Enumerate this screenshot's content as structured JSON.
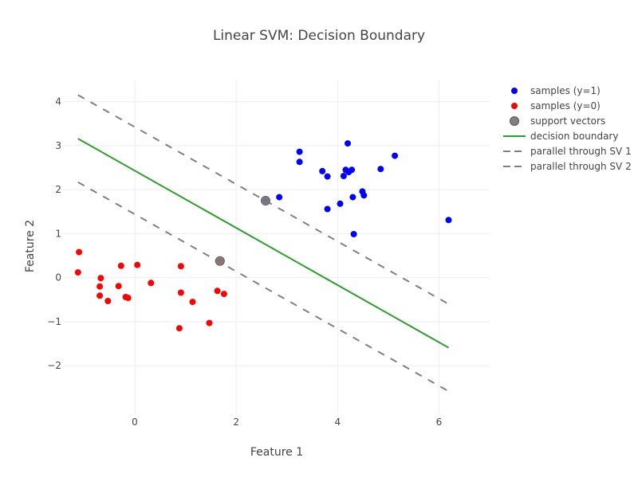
{
  "chart_data": {
    "type": "scatter",
    "title": "Linear SVM: Decision Boundary",
    "xlabel": "Feature 1",
    "ylabel": "Feature 2",
    "xlim": [
      -1.4,
      7.0
    ],
    "ylim": [
      -3.1,
      4.5
    ],
    "xticks": [
      0,
      2,
      4,
      6
    ],
    "yticks": [
      -2,
      -1,
      0,
      1,
      2,
      3,
      4
    ],
    "grid": true,
    "legend_position": "right",
    "series": [
      {
        "name": "samples (y=1)",
        "kind": "markers",
        "color": "#0000ff",
        "points": [
          [
            2.58,
            1.75
          ],
          [
            2.85,
            1.83
          ],
          [
            3.25,
            2.86
          ],
          [
            3.25,
            2.63
          ],
          [
            3.7,
            2.42
          ],
          [
            3.8,
            2.3
          ],
          [
            3.8,
            1.56
          ],
          [
            4.05,
            1.68
          ],
          [
            4.12,
            2.31
          ],
          [
            4.16,
            2.45
          ],
          [
            4.2,
            3.05
          ],
          [
            4.22,
            2.4
          ],
          [
            4.28,
            2.45
          ],
          [
            4.3,
            1.83
          ],
          [
            4.32,
            0.99
          ],
          [
            4.49,
            1.96
          ],
          [
            4.52,
            1.87
          ],
          [
            4.85,
            2.47
          ],
          [
            5.13,
            2.77
          ],
          [
            6.19,
            1.31
          ]
        ]
      },
      {
        "name": "samples (y=0)",
        "kind": "markers",
        "color": "#ff0000",
        "points": [
          [
            -1.1,
            0.58
          ],
          [
            -1.12,
            0.12
          ],
          [
            -0.67,
            -0.01
          ],
          [
            -0.69,
            -0.2
          ],
          [
            -0.69,
            -0.41
          ],
          [
            -0.53,
            -0.53
          ],
          [
            -0.32,
            -0.19
          ],
          [
            -0.27,
            0.27
          ],
          [
            -0.18,
            -0.44
          ],
          [
            -0.13,
            -0.46
          ],
          [
            0.05,
            0.29
          ],
          [
            0.32,
            -0.12
          ],
          [
            0.88,
            -1.15
          ],
          [
            0.91,
            0.26
          ],
          [
            0.91,
            -0.34
          ],
          [
            1.14,
            -0.55
          ],
          [
            1.47,
            -1.03
          ],
          [
            1.63,
            -0.3
          ],
          [
            1.68,
            0.38
          ],
          [
            1.76,
            -0.37
          ]
        ]
      },
      {
        "name": "support vectors",
        "kind": "support",
        "color": "#808080",
        "points": [
          [
            2.58,
            1.75
          ],
          [
            1.68,
            0.38
          ]
        ]
      },
      {
        "name": "decision boundary",
        "kind": "line",
        "color": "#2ca02c",
        "dash": "solid",
        "points": [
          [
            -1.12,
            3.16
          ],
          [
            6.19,
            -1.59
          ]
        ]
      },
      {
        "name": "parallel through SV 1",
        "kind": "line",
        "color": "#808080",
        "dash": "dash",
        "points": [
          [
            -1.12,
            4.15
          ],
          [
            6.19,
            -0.6
          ]
        ]
      },
      {
        "name": "parallel through SV 2",
        "kind": "line",
        "color": "#808080",
        "dash": "dash",
        "points": [
          [
            -1.12,
            2.17
          ],
          [
            6.19,
            -2.58
          ]
        ]
      }
    ]
  }
}
